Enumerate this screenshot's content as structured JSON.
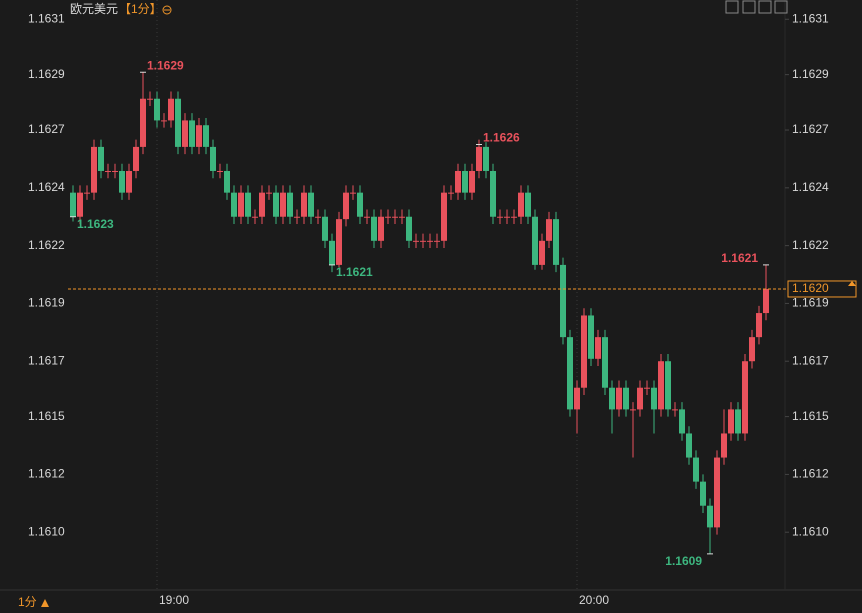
{
  "chart_data": {
    "type": "candlestick",
    "title": "欧元美元",
    "period": "【1分】",
    "footer_period": "1分",
    "categories": [
      null,
      null,
      null,
      null,
      null,
      null,
      null,
      null,
      null,
      null,
      null,
      null,
      "19:00",
      null,
      null,
      null,
      null,
      null,
      null,
      null,
      null,
      null,
      null,
      null,
      null,
      null,
      null,
      null,
      null,
      null,
      null,
      null,
      null,
      null,
      null,
      null,
      null,
      null,
      null,
      null,
      null,
      null,
      null,
      null,
      null,
      null,
      null,
      null,
      null,
      null,
      null,
      null,
      null,
      null,
      null,
      null,
      null,
      null,
      null,
      null,
      null,
      null,
      null,
      null,
      null,
      null,
      null,
      null,
      null,
      null,
      null,
      null,
      "20:00",
      null,
      null,
      null,
      null,
      null,
      null,
      null,
      null,
      null,
      null,
      null,
      null,
      null,
      null,
      null,
      null,
      null,
      null,
      null,
      null,
      null,
      null,
      null,
      null,
      null,
      null,
      null
    ],
    "open": [
      1.1624,
      1.1623,
      1.1624,
      1.1624,
      1.16259,
      1.16249,
      1.16249,
      1.16249,
      1.1624,
      1.16249,
      1.16259,
      1.16279,
      1.16279,
      1.1627,
      1.1627,
      1.16279,
      1.16259,
      1.1627,
      1.16259,
      1.16268,
      1.16259,
      1.16249,
      1.16249,
      1.1624,
      1.1623,
      1.1624,
      1.1623,
      1.1623,
      1.1624,
      1.1624,
      1.1623,
      1.1624,
      1.1623,
      1.1623,
      1.1624,
      1.1623,
      1.1623,
      1.1622,
      1.1621,
      1.16229,
      1.1624,
      1.1624,
      1.1623,
      1.1623,
      1.1622,
      1.1623,
      1.1623,
      1.1623,
      1.1623,
      1.1622,
      1.1622,
      1.1622,
      1.1622,
      1.1622,
      1.1624,
      1.1624,
      1.16249,
      1.1624,
      1.16249,
      1.16259,
      1.16249,
      1.1623,
      1.1623,
      1.1623,
      1.1623,
      1.1624,
      1.1623,
      1.1621,
      1.1622,
      1.16229,
      1.1621,
      1.1618,
      1.1615,
      1.16159,
      1.16189,
      1.16171,
      1.1618,
      1.16159,
      1.1615,
      1.16159,
      1.1615,
      1.1615,
      1.16159,
      1.16159,
      1.1615,
      1.1617,
      1.1615,
      1.1615,
      1.1614,
      1.1613,
      1.1612,
      1.1611,
      1.16101,
      1.1613,
      1.1614,
      1.1615,
      1.1614,
      1.1617,
      1.1618,
      1.1619
    ],
    "high": [
      1.16243,
      1.16243,
      1.16243,
      1.16262,
      1.16262,
      1.16252,
      1.16252,
      1.16252,
      1.16252,
      1.16262,
      1.1629,
      1.16282,
      1.16282,
      1.16273,
      1.16282,
      1.16282,
      1.16273,
      1.16273,
      1.16271,
      1.16271,
      1.16262,
      1.16252,
      1.16252,
      1.16243,
      1.16243,
      1.16243,
      1.16233,
      1.16243,
      1.16243,
      1.16243,
      1.16243,
      1.16243,
      1.16233,
      1.16243,
      1.16243,
      1.16233,
      1.16233,
      1.16223,
      1.16232,
      1.16243,
      1.16243,
      1.16243,
      1.16233,
      1.16233,
      1.16233,
      1.16233,
      1.16233,
      1.16233,
      1.16233,
      1.16223,
      1.16223,
      1.16223,
      1.16223,
      1.16243,
      1.16243,
      1.16252,
      1.16252,
      1.16252,
      1.16262,
      1.16261,
      1.16252,
      1.16233,
      1.16233,
      1.16233,
      1.16243,
      1.16243,
      1.16233,
      1.16223,
      1.16232,
      1.16232,
      1.16213,
      1.16183,
      1.16162,
      1.16192,
      1.16192,
      1.16183,
      1.16183,
      1.16162,
      1.16162,
      1.16162,
      1.16153,
      1.16162,
      1.16162,
      1.16162,
      1.16173,
      1.16173,
      1.16153,
      1.16153,
      1.16143,
      1.16133,
      1.16123,
      1.16113,
      1.16133,
      1.1615,
      1.16153,
      1.16153,
      1.16173,
      1.16183,
      1.16193,
      1.1621
    ],
    "low": [
      1.16228,
      1.16227,
      1.16237,
      1.16237,
      1.16246,
      1.16246,
      1.16246,
      1.16237,
      1.16237,
      1.16246,
      1.16256,
      1.16276,
      1.16267,
      1.16267,
      1.16267,
      1.16256,
      1.16256,
      1.16256,
      1.16256,
      1.16256,
      1.16246,
      1.16246,
      1.16237,
      1.16227,
      1.16227,
      1.16227,
      1.16227,
      1.16227,
      1.16237,
      1.16227,
      1.16227,
      1.16227,
      1.16227,
      1.16227,
      1.16227,
      1.16227,
      1.16217,
      1.16207,
      1.16209,
      1.16226,
      1.16237,
      1.16227,
      1.16227,
      1.16217,
      1.16217,
      1.16227,
      1.16227,
      1.16227,
      1.16217,
      1.16217,
      1.16217,
      1.16217,
      1.16217,
      1.16217,
      1.16237,
      1.16237,
      1.16237,
      1.16237,
      1.16246,
      1.16246,
      1.16227,
      1.16227,
      1.16227,
      1.16227,
      1.16227,
      1.16227,
      1.16208,
      1.16208,
      1.16217,
      1.16207,
      1.16177,
      1.16147,
      1.1614,
      1.16156,
      1.16168,
      1.16168,
      1.16156,
      1.1614,
      1.16147,
      1.16147,
      1.1613,
      1.16147,
      1.16156,
      1.1614,
      1.16147,
      1.16147,
      1.16147,
      1.16137,
      1.16127,
      1.16117,
      1.16107,
      1.1609,
      1.16098,
      1.16127,
      1.16137,
      1.16137,
      1.16137,
      1.16167,
      1.16177,
      1.16187
    ],
    "close": [
      1.1623,
      1.1624,
      1.1624,
      1.16259,
      1.16249,
      1.16249,
      1.16249,
      1.1624,
      1.16249,
      1.16259,
      1.16279,
      1.16279,
      1.1627,
      1.1627,
      1.16279,
      1.16259,
      1.1627,
      1.16259,
      1.16268,
      1.16259,
      1.16249,
      1.16249,
      1.1624,
      1.1623,
      1.1624,
      1.1623,
      1.1623,
      1.1624,
      1.1624,
      1.1623,
      1.1624,
      1.1623,
      1.1623,
      1.1624,
      1.1623,
      1.1623,
      1.1622,
      1.1621,
      1.16229,
      1.1624,
      1.1624,
      1.1623,
      1.1623,
      1.1622,
      1.1623,
      1.1623,
      1.1623,
      1.1623,
      1.1622,
      1.1622,
      1.1622,
      1.1622,
      1.1622,
      1.1624,
      1.1624,
      1.16249,
      1.1624,
      1.16249,
      1.16259,
      1.16249,
      1.1623,
      1.1623,
      1.1623,
      1.1623,
      1.1624,
      1.1623,
      1.1621,
      1.1622,
      1.16229,
      1.1621,
      1.1618,
      1.1615,
      1.16159,
      1.16189,
      1.16171,
      1.1618,
      1.16159,
      1.1615,
      1.16159,
      1.1615,
      1.1615,
      1.16159,
      1.16159,
      1.1615,
      1.1617,
      1.1615,
      1.1615,
      1.1614,
      1.1613,
      1.1612,
      1.1611,
      1.16101,
      1.1613,
      1.1614,
      1.1615,
      1.1614,
      1.1617,
      1.1618,
      1.1619,
      1.162
    ],
    "up_color": "#e8525c",
    "down_color": "#3db67f",
    "ylim": [
      1.16075,
      1.1632
    ],
    "yticks": [
      {
        "value": 1.16312,
        "label": "1.1631"
      },
      {
        "value": 1.16289,
        "label": "1.1629"
      },
      {
        "value": 1.16266,
        "label": "1.1627"
      },
      {
        "value": 1.16242,
        "label": "1.1624"
      },
      {
        "value": 1.16218,
        "label": "1.1622"
      },
      {
        "value": 1.16194,
        "label": "1.1619"
      },
      {
        "value": 1.1617,
        "label": "1.1617"
      },
      {
        "value": 1.16147,
        "label": "1.1615"
      },
      {
        "value": 1.16123,
        "label": "1.1612"
      },
      {
        "value": 1.16099,
        "label": "1.1610"
      }
    ],
    "annotations": [
      {
        "at": 10,
        "side": "high",
        "value": 1.1629,
        "label": "1.1629"
      },
      {
        "at": 0,
        "side": "low",
        "value": 1.1623,
        "label": "1.1623"
      },
      {
        "at": 37,
        "side": "low",
        "value": 1.1621,
        "label": "1.1621"
      },
      {
        "at": 58,
        "side": "high",
        "value": 1.1626,
        "label": "1.1626"
      },
      {
        "at": 91,
        "side": "low",
        "value": 1.1609,
        "label": "1.1609"
      },
      {
        "at": 99,
        "side": "high",
        "value": 1.1621,
        "label": "1.1621"
      }
    ],
    "last_price": {
      "value": 1.162,
      "label": "1.1620"
    },
    "last_price_color": "#f0962a"
  }
}
